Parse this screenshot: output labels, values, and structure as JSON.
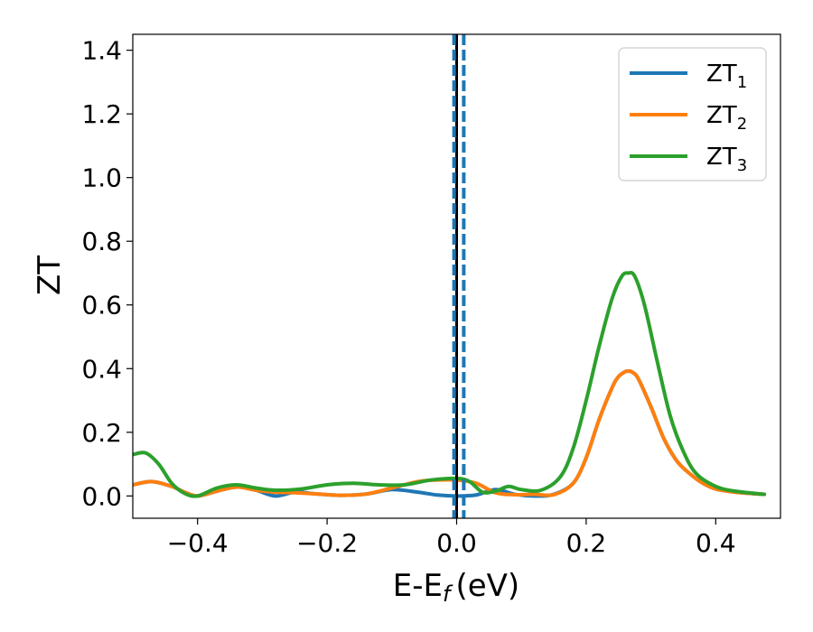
{
  "chart_data": {
    "type": "line",
    "xlabel": "E-E",
    "xlabel_sub": "f",
    "xlabel_unit": "(eV)",
    "ylabel": "ZT",
    "xlim": [
      -0.5,
      0.5
    ],
    "ylim": [
      -0.07,
      1.45
    ],
    "xticks": [
      -0.4,
      -0.2,
      0.0,
      0.2,
      0.4
    ],
    "xtick_labels": [
      "−0.4",
      "−0.2",
      "0.0",
      "0.2",
      "0.4"
    ],
    "yticks": [
      0.0,
      0.2,
      0.4,
      0.6,
      0.8,
      1.0,
      1.2,
      1.4
    ],
    "ytick_labels": [
      "0.0",
      "0.2",
      "0.4",
      "0.6",
      "0.8",
      "1.0",
      "1.2",
      "1.4"
    ],
    "legend_position": "top-right",
    "vlines": [
      {
        "x": 0.0,
        "style": "solid",
        "color": "#000000"
      },
      {
        "x": -0.004,
        "style": "dashed",
        "color": "#1f77b4"
      },
      {
        "x": 0.011,
        "style": "dashed",
        "color": "#1f77b4"
      }
    ],
    "series": [
      {
        "name": "ZT",
        "sub": "1",
        "color": "#1f77b4",
        "x": [
          -0.5,
          -0.47,
          -0.44,
          -0.42,
          -0.4,
          -0.37,
          -0.34,
          -0.31,
          -0.28,
          -0.25,
          -0.22,
          -0.18,
          -0.14,
          -0.1,
          -0.06,
          -0.03,
          0.0,
          0.03,
          0.06,
          0.09,
          0.12,
          0.15,
          0.18,
          0.2,
          0.22,
          0.24,
          0.25,
          0.26,
          0.265,
          0.27,
          0.28,
          0.3,
          0.32,
          0.34,
          0.36,
          0.38,
          0.4,
          0.43,
          0.475
        ],
        "y": [
          0.035,
          0.045,
          0.03,
          0.012,
          0.0,
          0.015,
          0.028,
          0.018,
          0.0,
          0.012,
          0.007,
          0.002,
          0.006,
          0.02,
          0.012,
          0.003,
          0.0,
          0.003,
          0.02,
          0.005,
          0.0,
          0.005,
          0.04,
          0.12,
          0.24,
          0.34,
          0.375,
          0.39,
          0.392,
          0.39,
          0.37,
          0.28,
          0.18,
          0.11,
          0.07,
          0.04,
          0.022,
          0.012,
          0.005
        ]
      },
      {
        "name": "ZT",
        "sub": "2",
        "color": "#ff7f0e",
        "x": [
          -0.5,
          -0.47,
          -0.44,
          -0.42,
          -0.4,
          -0.37,
          -0.34,
          -0.31,
          -0.28,
          -0.25,
          -0.22,
          -0.18,
          -0.14,
          -0.1,
          -0.06,
          -0.03,
          0.0,
          0.03,
          0.06,
          0.09,
          0.12,
          0.15,
          0.18,
          0.2,
          0.22,
          0.24,
          0.25,
          0.26,
          0.265,
          0.27,
          0.28,
          0.3,
          0.32,
          0.34,
          0.36,
          0.38,
          0.4,
          0.43,
          0.475
        ],
        "y": [
          0.035,
          0.045,
          0.03,
          0.012,
          0.0,
          0.015,
          0.028,
          0.018,
          0.012,
          0.01,
          0.007,
          0.002,
          0.006,
          0.025,
          0.045,
          0.05,
          0.05,
          0.04,
          0.01,
          0.004,
          0.005,
          0.004,
          0.04,
          0.12,
          0.24,
          0.34,
          0.375,
          0.39,
          0.392,
          0.39,
          0.37,
          0.28,
          0.18,
          0.11,
          0.07,
          0.04,
          0.022,
          0.012,
          0.005
        ]
      },
      {
        "name": "ZT",
        "sub": "3",
        "color": "#2ca02c",
        "x": [
          -0.5,
          -0.48,
          -0.46,
          -0.44,
          -0.42,
          -0.4,
          -0.37,
          -0.34,
          -0.31,
          -0.28,
          -0.24,
          -0.2,
          -0.16,
          -0.12,
          -0.08,
          -0.04,
          0.0,
          0.02,
          0.04,
          0.06,
          0.08,
          0.1,
          0.13,
          0.16,
          0.18,
          0.2,
          0.22,
          0.24,
          0.255,
          0.265,
          0.275,
          0.29,
          0.31,
          0.33,
          0.35,
          0.37,
          0.4,
          0.43,
          0.475
        ],
        "y": [
          0.13,
          0.135,
          0.1,
          0.04,
          0.008,
          0.0,
          0.025,
          0.035,
          0.025,
          0.018,
          0.022,
          0.035,
          0.04,
          0.035,
          0.035,
          0.05,
          0.055,
          0.045,
          0.012,
          0.015,
          0.03,
          0.02,
          0.018,
          0.06,
          0.15,
          0.3,
          0.47,
          0.62,
          0.69,
          0.7,
          0.69,
          0.6,
          0.42,
          0.25,
          0.14,
          0.07,
          0.03,
          0.015,
          0.005
        ]
      }
    ]
  }
}
